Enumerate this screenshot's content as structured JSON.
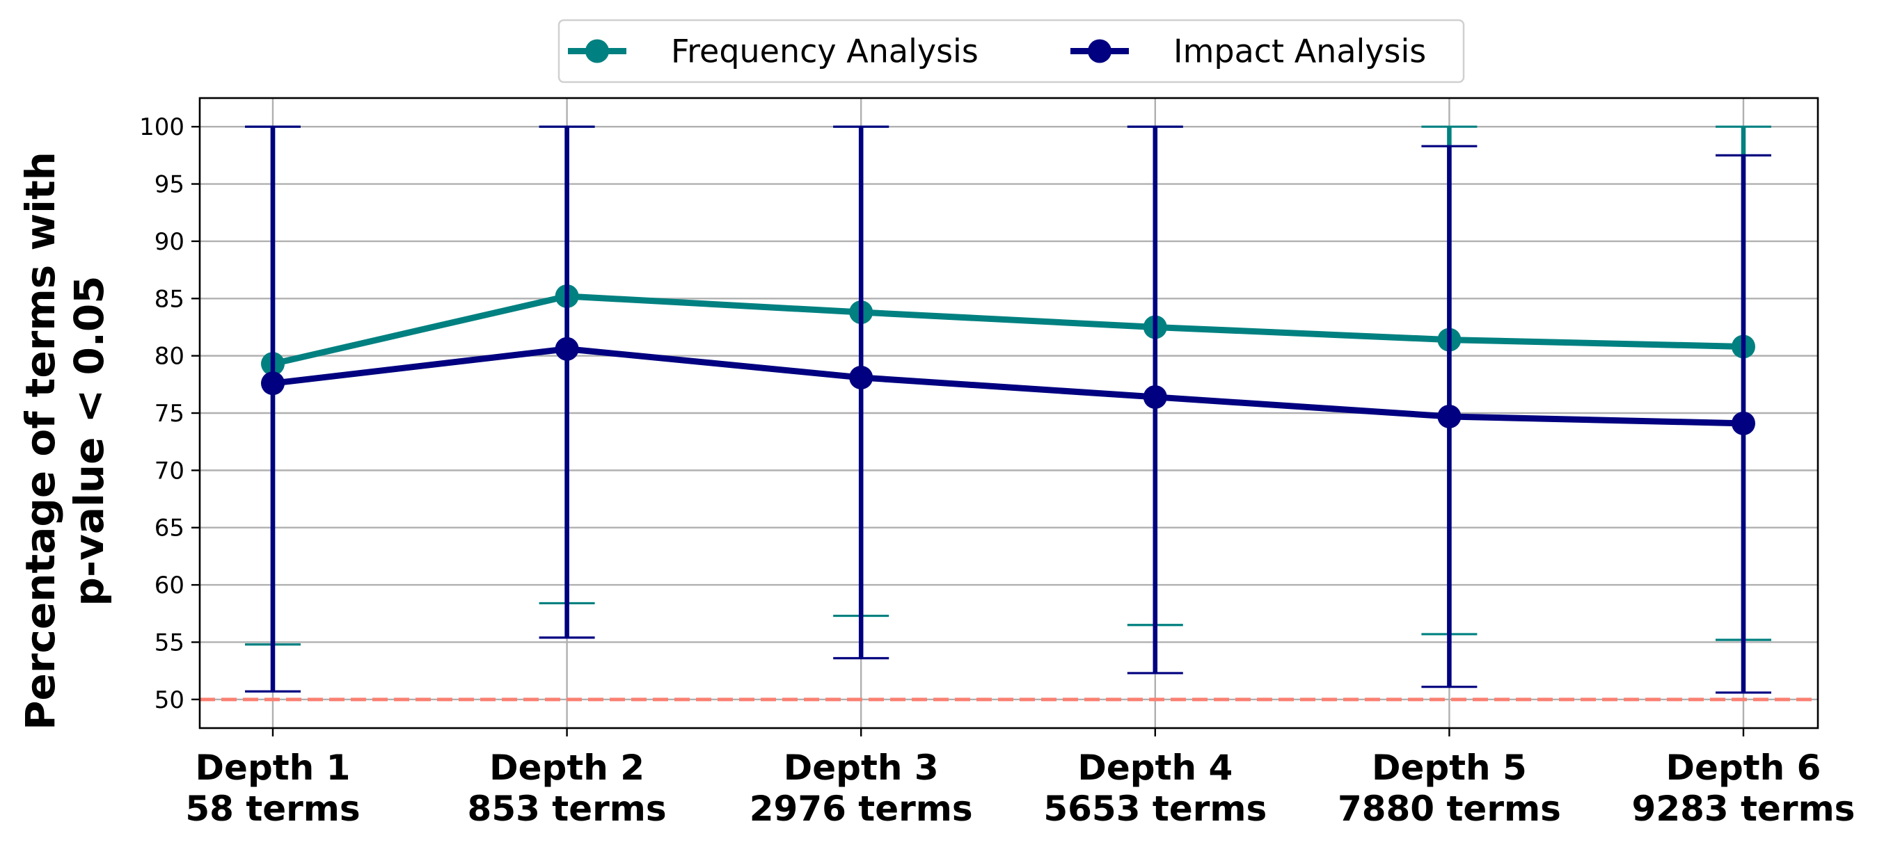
{
  "chart_data": {
    "type": "line",
    "categories": [
      [
        "Depth 1",
        "58 terms"
      ],
      [
        "Depth 2",
        "853 terms"
      ],
      [
        "Depth 3",
        "2976 terms"
      ],
      [
        "Depth 4",
        "5653 terms"
      ],
      [
        "Depth 5",
        "7880 terms"
      ],
      [
        "Depth 6",
        "9283 terms"
      ]
    ],
    "series": [
      {
        "name": "Frequency Analysis",
        "color": "#008080",
        "values": [
          79.3,
          85.2,
          83.8,
          82.5,
          81.4,
          80.8
        ],
        "err_low": [
          54.8,
          58.4,
          57.3,
          56.5,
          55.7,
          55.2
        ],
        "err_high": [
          100,
          100,
          100,
          100,
          100,
          100
        ]
      },
      {
        "name": "Impact Analysis",
        "color": "#000080",
        "values": [
          77.6,
          80.6,
          78.1,
          76.4,
          74.7,
          74.1
        ],
        "err_low": [
          50.7,
          55.4,
          53.6,
          52.3,
          51.1,
          50.6
        ],
        "err_high": [
          100,
          100,
          100,
          100,
          98.3,
          97.5
        ]
      }
    ],
    "ylabel": [
      "Percentage of terms with",
      "p-value < 0.05"
    ],
    "yticks": [
      50,
      55,
      60,
      65,
      70,
      75,
      80,
      85,
      90,
      95,
      100
    ],
    "ylim": [
      47.5,
      102.5
    ],
    "reference_line": {
      "y": 50,
      "color": "#FA8072",
      "style": "dashed"
    },
    "grid": true,
    "legend_position": "top-center"
  }
}
